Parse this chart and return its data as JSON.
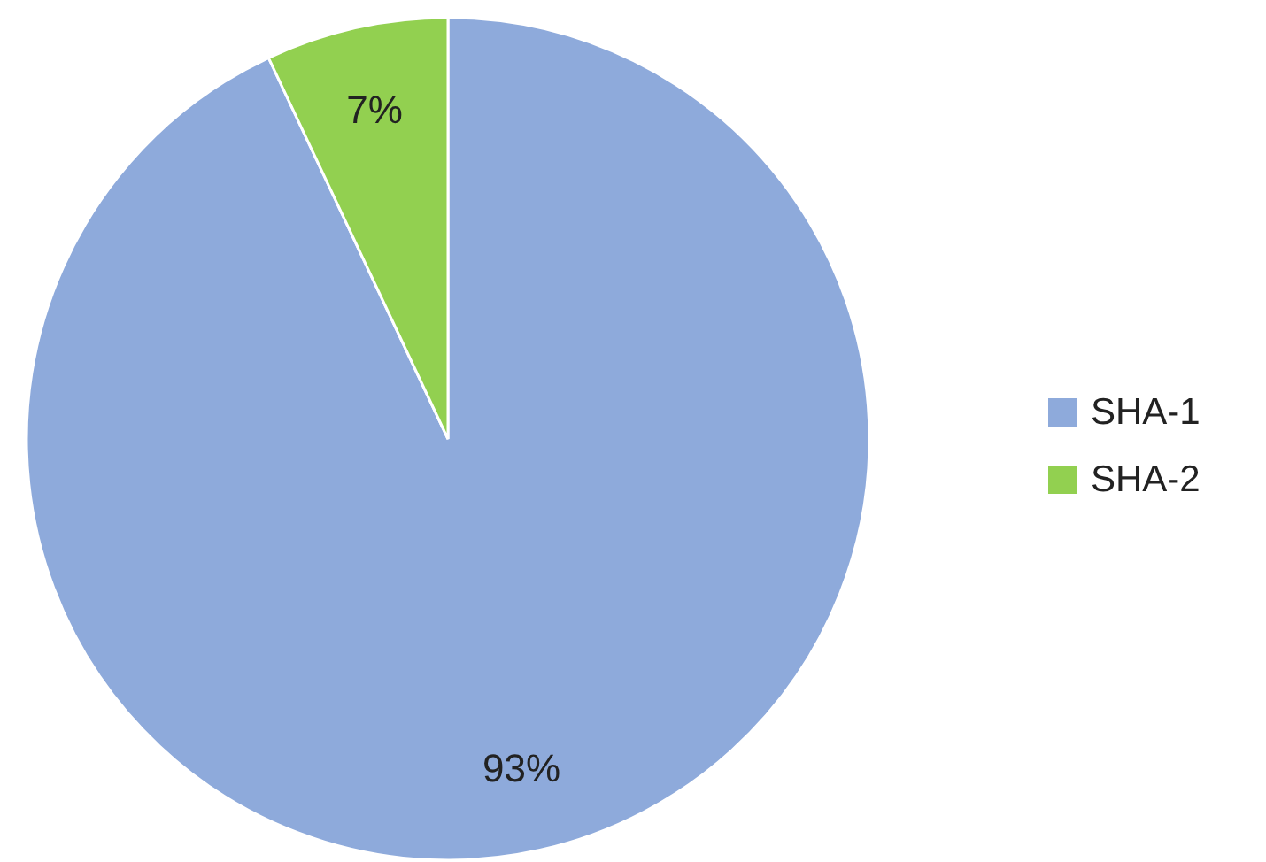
{
  "chart_data": {
    "type": "pie",
    "categories": [
      "SHA-1",
      "SHA-2"
    ],
    "values": [
      93,
      7
    ],
    "colors": [
      "#8eaadb",
      "#92d050"
    ],
    "value_labels": [
      "93%",
      "7%"
    ],
    "legend": "right"
  }
}
